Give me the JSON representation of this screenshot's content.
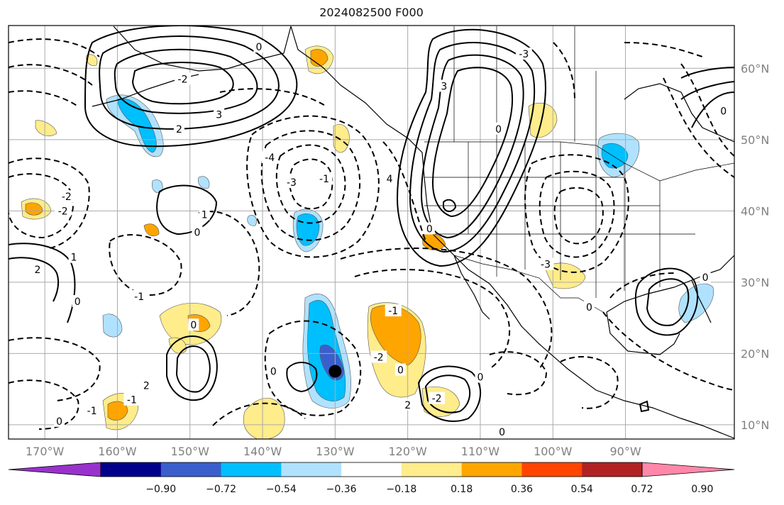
{
  "title": "2024082500 F000",
  "map": {
    "lon_range": [
      -175,
      -75
    ],
    "lat_range": [
      8,
      66
    ],
    "lat_ticks": [
      {
        "value": 60,
        "label": "60°N"
      },
      {
        "value": 50,
        "label": "50°N"
      },
      {
        "value": 40,
        "label": "40°N"
      },
      {
        "value": 30,
        "label": "30°N"
      },
      {
        "value": 20,
        "label": "20°N"
      },
      {
        "value": 10,
        "label": "10°N"
      }
    ],
    "lon_ticks": [
      {
        "value": -170,
        "label": "170°W"
      },
      {
        "value": -160,
        "label": "160°W"
      },
      {
        "value": -150,
        "label": "150°W"
      },
      {
        "value": -140,
        "label": "140°W"
      },
      {
        "value": -130,
        "label": "130°W"
      },
      {
        "value": -120,
        "label": "120°W"
      },
      {
        "value": -110,
        "label": "110°W"
      },
      {
        "value": -100,
        "label": "100°W"
      },
      {
        "value": -90,
        "label": "90°W"
      }
    ],
    "gridlines": true,
    "storm_marker": {
      "lon": -130,
      "lat": 17.5
    }
  },
  "contour_labels": [
    {
      "text": "-2",
      "lon": -167,
      "lat": 42
    },
    {
      "text": "-2",
      "lon": -167.5,
      "lat": 40
    },
    {
      "text": "1",
      "lon": -166,
      "lat": 33.5
    },
    {
      "text": "2",
      "lon": -171,
      "lat": 31.8
    },
    {
      "text": "0",
      "lon": -165.5,
      "lat": 27.3
    },
    {
      "text": "3",
      "lon": -146,
      "lat": 53.5
    },
    {
      "text": "2",
      "lon": -151.5,
      "lat": 51.5
    },
    {
      "text": "1",
      "lon": -148,
      "lat": 39.5
    },
    {
      "text": "0",
      "lon": -149,
      "lat": 37
    },
    {
      "text": "-1",
      "lon": -157,
      "lat": 28
    },
    {
      "text": "-4",
      "lon": -139,
      "lat": 47.5
    },
    {
      "text": "-3",
      "lon": -136,
      "lat": 44
    },
    {
      "text": "-2",
      "lon": -151,
      "lat": 58.5
    },
    {
      "text": "0",
      "lon": -140.5,
      "lat": 63
    },
    {
      "text": "-1",
      "lon": -131.5,
      "lat": 44.5
    },
    {
      "text": "4",
      "lon": -122.5,
      "lat": 44.5
    },
    {
      "text": "3",
      "lon": -115,
      "lat": 57.5
    },
    {
      "text": "-3",
      "lon": -104,
      "lat": 62
    },
    {
      "text": "0",
      "lon": -107.5,
      "lat": 51.5
    },
    {
      "text": "0",
      "lon": -117,
      "lat": 37.5
    },
    {
      "text": "-3",
      "lon": -101,
      "lat": 32.5
    },
    {
      "text": "0",
      "lon": -95,
      "lat": 26.5
    },
    {
      "text": "-1",
      "lon": -122,
      "lat": 26
    },
    {
      "text": "-2",
      "lon": -124,
      "lat": 19.5
    },
    {
      "text": "0",
      "lon": -121,
      "lat": 17.7
    },
    {
      "text": "0",
      "lon": -110,
      "lat": 16.7
    },
    {
      "text": "-2",
      "lon": -116,
      "lat": 13.7
    },
    {
      "text": "2",
      "lon": -120,
      "lat": 12.8
    },
    {
      "text": "0",
      "lon": -107,
      "lat": 9
    },
    {
      "text": "0",
      "lon": -138.5,
      "lat": 17.5
    },
    {
      "text": "0",
      "lon": -149.5,
      "lat": 24
    },
    {
      "text": "2",
      "lon": -156,
      "lat": 15.5
    },
    {
      "text": "-1",
      "lon": -158,
      "lat": 13.5
    },
    {
      "text": "-1",
      "lon": -163.5,
      "lat": 12
    },
    {
      "text": "0",
      "lon": -168,
      "lat": 10.5
    },
    {
      "text": "0",
      "lon": -79,
      "lat": 30.7
    },
    {
      "text": "0",
      "lon": -76.5,
      "lat": 54
    }
  ],
  "colorbar": {
    "colors": [
      "#9932cc",
      "#00008b",
      "#3a5fcd",
      "#00bfff",
      "#b0e2ff",
      "#ffffff",
      "#ffec8b",
      "#ffa500",
      "#ff4500",
      "#b22222",
      "#ff88aa"
    ],
    "tick_labels": [
      "−0.90",
      "−0.72",
      "−0.54",
      "−0.36",
      "−0.18",
      "0.18",
      "0.36",
      "0.54",
      "0.72",
      "0.90"
    ]
  }
}
